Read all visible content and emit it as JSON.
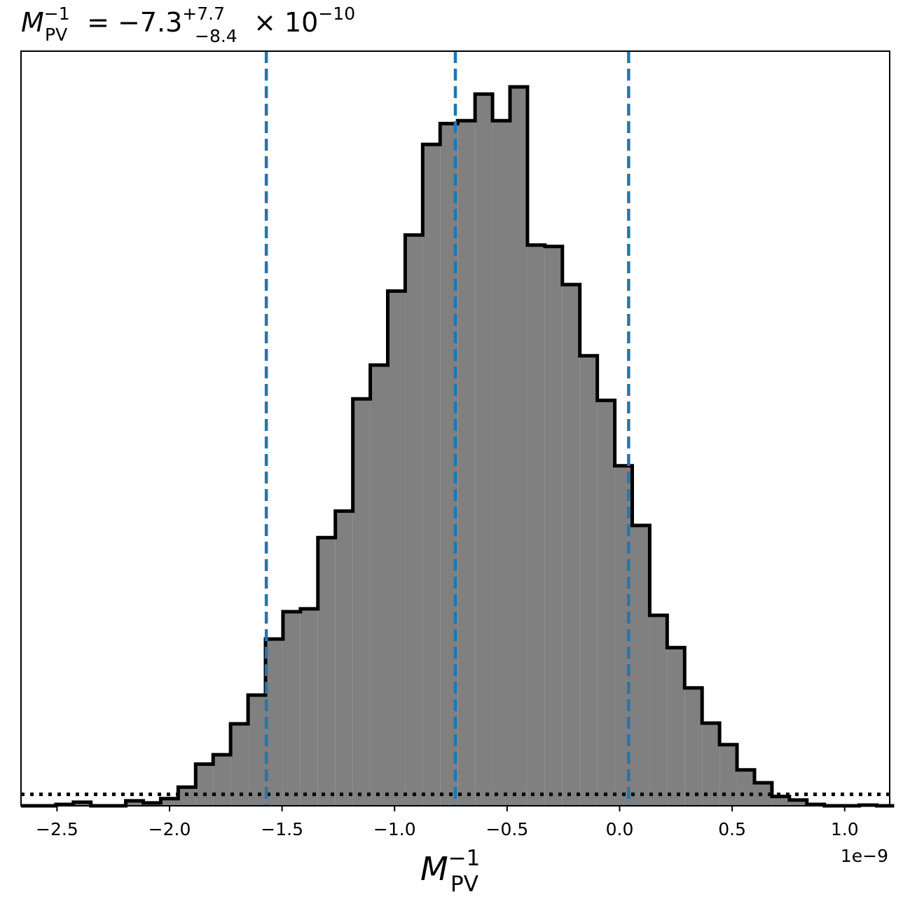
{
  "chart_data": {
    "type": "histogram",
    "title": {
      "symbol": "M",
      "subscript": "PV",
      "superscript": "−1",
      "equals": " = ",
      "value": "−7.3",
      "upper": "+7.7",
      "lower": "−8.4",
      "times": " × ",
      "power_base": "10",
      "power_exp": "−10"
    },
    "xlabel": {
      "symbol": "M",
      "subscript": "PV",
      "superscript": "−1"
    },
    "offset_text": "1e−9",
    "xlim": [
      -2.66,
      1.2
    ],
    "ylim": [
      0,
      1
    ],
    "x_ticks": [
      {
        "value": -2.5,
        "label": "−2.5"
      },
      {
        "value": -2.0,
        "label": "−2.0"
      },
      {
        "value": -1.5,
        "label": "−1.5"
      },
      {
        "value": -1.0,
        "label": "−1.0"
      },
      {
        "value": -0.5,
        "label": "−0.5"
      },
      {
        "value": 0.0,
        "label": "0.0"
      },
      {
        "value": 0.5,
        "label": "0.5"
      },
      {
        "value": 1.0,
        "label": "1.0"
      }
    ],
    "y_ticks_shown": false,
    "bins": {
      "start": -2.66,
      "width": 0.0776,
      "counts": [
        0.0,
        0.0,
        0.002,
        0.005,
        0.0,
        0.0,
        0.007,
        0.004,
        0.01,
        0.026,
        0.058,
        0.071,
        0.114,
        0.154,
        0.232,
        0.27,
        0.274,
        0.373,
        0.41,
        0.566,
        0.613,
        0.716,
        0.794,
        0.92,
        0.949,
        0.953,
        0.99,
        0.953,
        1.0,
        0.78,
        0.778,
        0.725,
        0.626,
        0.564,
        0.473,
        0.39,
        0.265,
        0.22,
        0.164,
        0.115,
        0.085,
        0.05,
        0.032,
        0.013,
        0.008,
        0.002,
        0.0,
        0.0,
        0.001,
        0.0
      ]
    },
    "fill_color": "#808080",
    "edge_color": "#000000",
    "vlines": {
      "values": [
        -1.57,
        -0.73,
        0.04
      ],
      "color": "#1f77b4",
      "style": "dashed"
    },
    "hline": {
      "value": 0.016,
      "color": "#000000",
      "style": "dotted"
    },
    "grid": false,
    "legend": false
  }
}
